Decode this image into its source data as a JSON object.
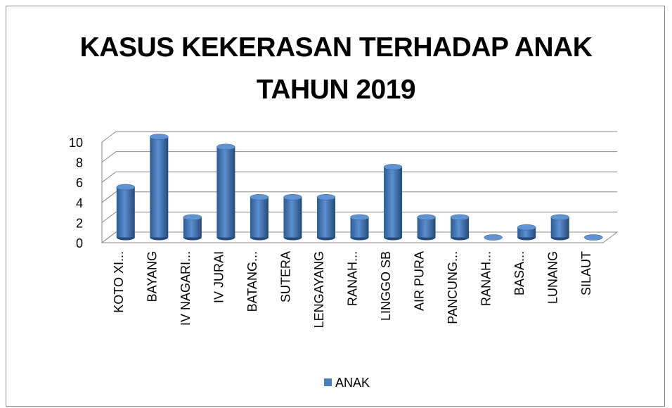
{
  "chart_data": {
    "type": "bar3d",
    "title": "KASUS KEKERASAN TERHADAP ANAK TAHUN 2019",
    "categories": [
      "KOTO XI...",
      "BAYANG",
      "IV NAGARI...",
      "IV JURAI",
      "BATANG...",
      "SUTERA",
      "LENGAYANG",
      "RANAH...",
      "LINGGO SB",
      "AIR PURA",
      "PANCUNG...",
      "RANAH...",
      "BASA...",
      "LUNANG",
      "SILAUT"
    ],
    "series": [
      {
        "name": "ANAK",
        "color": "#4a7ebb",
        "values": [
          5,
          10,
          2,
          9,
          4,
          4,
          4,
          2,
          7,
          2,
          2,
          0,
          1,
          2,
          0
        ]
      }
    ],
    "ylim": [
      0,
      10
    ],
    "yticks": [
      0,
      2,
      4,
      6,
      8,
      10
    ],
    "grid": true,
    "legend": "bottom"
  }
}
